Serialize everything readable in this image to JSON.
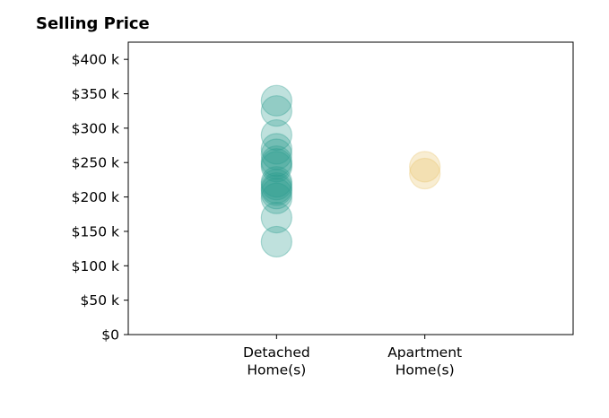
{
  "chart_data": {
    "type": "scatter",
    "title": "Selling Price",
    "xlabel": "",
    "ylabel": "",
    "categories": [
      "Detached\nHome(s)",
      "Apartment\nHome(s)"
    ],
    "x_range": [
      -1,
      2
    ],
    "ylim": [
      0,
      425000
    ],
    "y_ticks": [
      {
        "value": 0,
        "label": "$0"
      },
      {
        "value": 50000,
        "label": "$50 k"
      },
      {
        "value": 100000,
        "label": "$100 k"
      },
      {
        "value": 150000,
        "label": "$150 k"
      },
      {
        "value": 200000,
        "label": "$200 k"
      },
      {
        "value": 250000,
        "label": "$250 k"
      },
      {
        "value": 300000,
        "label": "$300 k"
      },
      {
        "value": 350000,
        "label": "$350 k"
      },
      {
        "value": 400000,
        "label": "$400 k"
      }
    ],
    "grid": false,
    "series": [
      {
        "category_index": 0,
        "color": "#2a9d8f",
        "opacity": 0.3,
        "values": [
          340000,
          325000,
          290000,
          270000,
          262000,
          252000,
          248000,
          244000,
          222000,
          218000,
          213000,
          210000,
          205000,
          198000,
          170000,
          135000
        ]
      },
      {
        "category_index": 1,
        "color": "#e9c46a",
        "opacity": 0.3,
        "values": [
          244000,
          234000
        ]
      }
    ]
  }
}
